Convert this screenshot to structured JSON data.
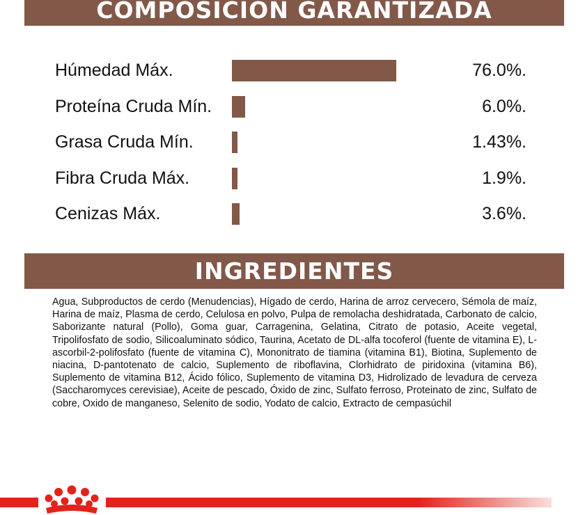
{
  "composition": {
    "title": "COMPOSICION GARANTIZADA",
    "rows": [
      {
        "label": "Húmedad Máx.",
        "value": "76.0%.",
        "amount": 76.0
      },
      {
        "label": "Proteína Cruda Mín.",
        "value": "6.0%.",
        "amount": 6.0
      },
      {
        "label": "Grasa Cruda Mín.",
        "value": "1.43%.",
        "amount": 1.43
      },
      {
        "label": "Fibra Cruda Máx.",
        "value": "1.9%.",
        "amount": 1.9
      },
      {
        "label": "Cenizas Máx.",
        "value": "3.6%.",
        "amount": 3.6
      }
    ],
    "bar_color": "#825849"
  },
  "ingredients": {
    "title": "INGREDIENTES",
    "text": "Agua, Subproductos de cerdo (Menudencias), Hígado de cerdo, Harina de arroz cervecero, Sémola de maíz, Harina de maíz, Plasma de cerdo, Celulosa en polvo, Pulpa de remolacha deshidratada, Carbonato de calcio, Saborizante natural (Pollo), Goma guar, Carragenina, Gelatina, Citrato de potasio, Aceite vegetal, Tripolifosfato de sodio, Silicoaluminato sódico, Taurina, Acetato de DL-alfa tocoferol (fuente de vitamina E), L-ascorbil-2-polifosfato (fuente de vitamina C), Mononitrato de tiamina (vitamina B1), Biotina, Suplemento de niacina, D-pantotenato de calcio, Suplemento de riboflavina, Clorhidrato de piridoxina (vitamina B6), Suplemento de vitamina B12, Ácido fólico, Suplemento de vitamina D3, Hidrolizado de levadura de cerveza (Saccharomyces cerevisiae), Aceite de pescado, Óxido de zinc, Sulfato ferroso, Proteinato de zinc, Sulfato de cobre, Oxido de manganeso, Selenito de sodio, Yodato de calcio, Extracto de cempasúchil"
  },
  "footer": {
    "logo_icon": "crown-icon",
    "accent_color": "#e2231a"
  }
}
